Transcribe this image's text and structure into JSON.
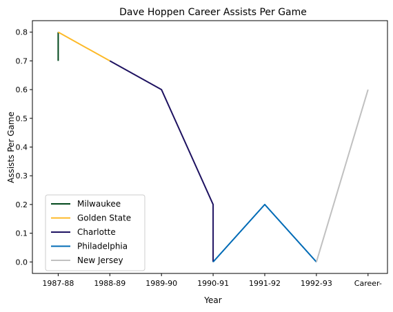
{
  "chart_data": {
    "type": "line",
    "title": "Dave Hoppen Career Assists Per Game",
    "xlabel": "Year",
    "ylabel": "Assists Per Game",
    "categories": [
      "1987-88",
      "1988-89",
      "1989-90",
      "1990-91",
      "1991-92",
      "1992-93",
      "Career-"
    ],
    "ylim": [
      -0.04,
      0.84
    ],
    "yticks": [
      0.0,
      0.1,
      0.2,
      0.3,
      0.4,
      0.5,
      0.6,
      0.7,
      0.8
    ],
    "grid": false,
    "legend_position": "lower-left",
    "series": [
      {
        "name": "Milwaukee",
        "color": "#00471B",
        "points": [
          [
            0,
            0.7
          ],
          [
            0,
            0.8
          ]
        ]
      },
      {
        "name": "Golden State",
        "color": "#FDB927",
        "points": [
          [
            0,
            0.8
          ],
          [
            1,
            0.7
          ]
        ]
      },
      {
        "name": "Charlotte",
        "color": "#1D1160",
        "points": [
          [
            1,
            0.7
          ],
          [
            2,
            0.6
          ],
          [
            3,
            0.2
          ],
          [
            3,
            0.0
          ]
        ]
      },
      {
        "name": "Philadelphia",
        "color": "#006BB6",
        "points": [
          [
            3,
            0.0
          ],
          [
            4,
            0.2
          ],
          [
            5,
            0.0
          ]
        ]
      },
      {
        "name": "New Jersey",
        "color": "#C0C0C0",
        "points": [
          [
            5,
            0.0
          ],
          [
            6,
            0.6
          ]
        ]
      }
    ]
  }
}
